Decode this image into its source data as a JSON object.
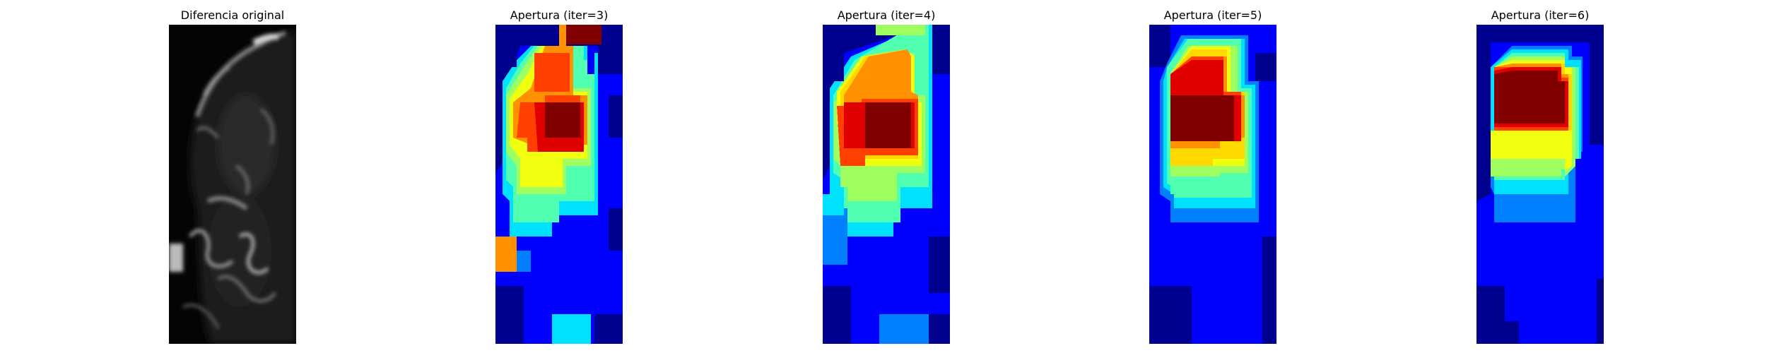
{
  "panels": [
    {
      "title": "Diferencia original",
      "kind": "grayscale"
    },
    {
      "title": "Apertura (iter=3)",
      "kind": "jet",
      "colormap": "jet"
    },
    {
      "title": "Apertura (iter=4)",
      "kind": "jet",
      "colormap": "jet"
    },
    {
      "title": "Apertura (iter=5)",
      "kind": "jet",
      "colormap": "jet"
    },
    {
      "title": "Apertura (iter=6)",
      "kind": "jet",
      "colormap": "jet"
    }
  ],
  "colors": {
    "jet_darkblue": "#00008f",
    "jet_blue": "#0000ff",
    "jet_azure": "#0080ff",
    "jet_cyan": "#00e0ff",
    "jet_aqua": "#50ffb0",
    "jet_lime": "#a0ff60",
    "jet_yellow": "#f0ff10",
    "jet_gold": "#ffd800",
    "jet_orange": "#ff9000",
    "jet_redorange": "#ff4000",
    "jet_red": "#e00000",
    "jet_darkred": "#800000"
  }
}
